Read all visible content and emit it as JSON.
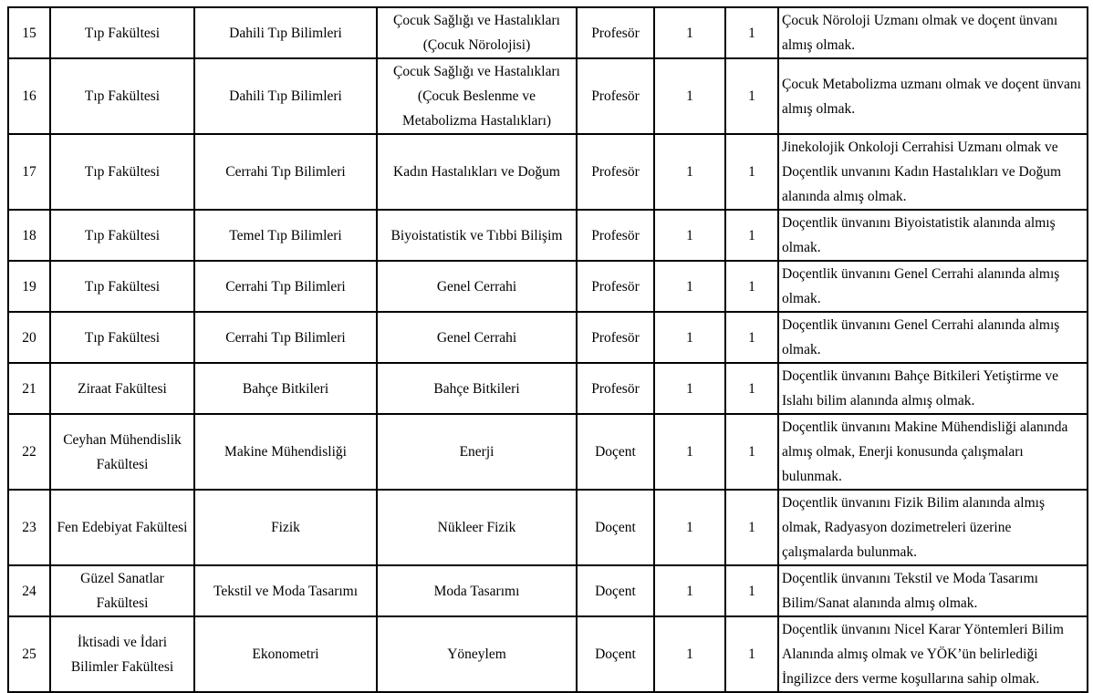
{
  "rows": [
    {
      "no": "15",
      "faculty": "Tıp Fakültesi",
      "department": "Dahili Tıp Bilimleri",
      "field": "Çocuk Sağlığı ve Hastalıkları (Çocuk Nörolojisi)",
      "title": "Profesör",
      "count1": "1",
      "count2": "1",
      "requirement": "Çocuk Nöroloji Uzmanı olmak ve doçent ünvanı almış olmak."
    },
    {
      "no": "16",
      "faculty": "Tıp Fakültesi",
      "department": "Dahili Tıp Bilimleri",
      "field": "Çocuk Sağlığı ve Hastalıkları (Çocuk Beslenme ve Metabolizma Hastalıkları)",
      "title": "Profesör",
      "count1": "1",
      "count2": "1",
      "requirement": "Çocuk Metabolizma uzmanı olmak ve doçent ünvanı almış olmak."
    },
    {
      "no": "17",
      "faculty": "Tıp Fakültesi",
      "department": "Cerrahi Tıp Bilimleri",
      "field": "Kadın Hastalıkları ve Doğum",
      "title": "Profesör",
      "count1": "1",
      "count2": "1",
      "requirement": "Jinekolojik Onkoloji Cerrahisi Uzmanı olmak ve Doçentlik unvanını Kadın Hastalıkları ve Doğum alanında almış olmak."
    },
    {
      "no": "18",
      "faculty": "Tıp Fakültesi",
      "department": "Temel Tıp Bilimleri",
      "field": "Biyoistatistik ve Tıbbi Bilişim",
      "title": "Profesör",
      "count1": "1",
      "count2": "1",
      "requirement": "Doçentlik ünvanını Biyoistatistik alanında almış olmak."
    },
    {
      "no": "19",
      "faculty": "Tıp Fakültesi",
      "department": "Cerrahi Tıp Bilimleri",
      "field": "Genel Cerrahi",
      "title": "Profesör",
      "count1": "1",
      "count2": "1",
      "requirement": "Doçentlik ünvanını Genel Cerrahi alanında almış olmak."
    },
    {
      "no": "20",
      "faculty": "Tıp Fakültesi",
      "department": "Cerrahi Tıp Bilimleri",
      "field": "Genel Cerrahi",
      "title": "Profesör",
      "count1": "1",
      "count2": "1",
      "requirement": "Doçentlik ünvanını Genel Cerrahi alanında almış olmak."
    },
    {
      "no": "21",
      "faculty": "Ziraat Fakültesi",
      "department": "Bahçe Bitkileri",
      "field": "Bahçe Bitkileri",
      "title": "Profesör",
      "count1": "1",
      "count2": "1",
      "requirement": "Doçentlik ünvanını Bahçe Bitkileri Yetiştirme ve Islahı bilim alanında almış olmak."
    },
    {
      "no": "22",
      "faculty": "Ceyhan Mühendislik Fakültesi",
      "department": "Makine Mühendisliği",
      "field": "Enerji",
      "title": "Doçent",
      "count1": "1",
      "count2": "1",
      "requirement": "Doçentlik ünvanını Makine Mühendisliği alanında almış olmak, Enerji konusunda çalışmaları bulunmak."
    },
    {
      "no": "23",
      "faculty": "Fen Edebiyat Fakültesi",
      "department": "Fizik",
      "field": "Nükleer Fizik",
      "title": "Doçent",
      "count1": "1",
      "count2": "1",
      "requirement": "Doçentlik ünvanını Fizik Bilim alanında almış olmak, Radyasyon dozimetreleri üzerine çalışmalarda bulunmak."
    },
    {
      "no": "24",
      "faculty": "Güzel Sanatlar Fakültesi",
      "department": "Tekstil ve Moda Tasarımı",
      "field": "Moda Tasarımı",
      "title": "Doçent",
      "count1": "1",
      "count2": "1",
      "requirement": "Doçentlik ünvanını Tekstil ve Moda Tasarımı Bilim/Sanat alanında almış olmak."
    },
    {
      "no": "25",
      "faculty": "İktisadi ve İdari Bilimler Fakültesi",
      "department": "Ekonometri",
      "field": "Yöneylem",
      "title": "Doçent",
      "count1": "1",
      "count2": "1",
      "requirement": "Doçentlik ünvanını Nicel Karar Yöntemleri Bilim Alanında almış olmak ve YÖK’ün belirlediği İngilizce ders verme koşullarına sahip olmak."
    }
  ]
}
